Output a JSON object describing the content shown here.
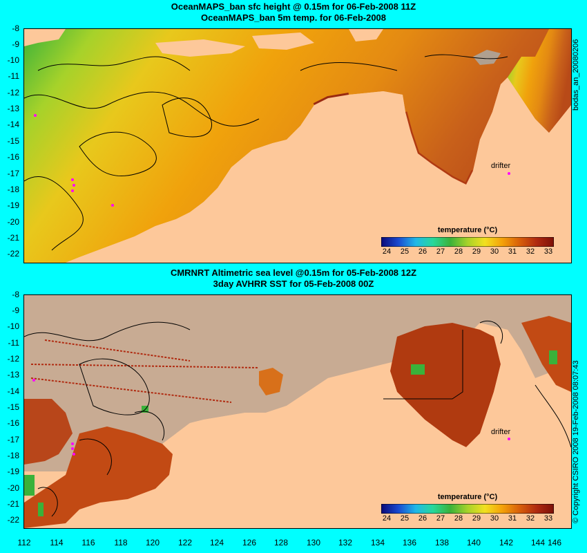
{
  "top_panel": {
    "title_line1": "OceanMAPS_ban sfc height @ 0.15m for 06-Feb-2008 11Z",
    "title_line2": "OceanMAPS_ban 5m temp. for 06-Feb-2008",
    "colorbar_title": "temperature (°C)",
    "drifter_label": "drifter",
    "side_label": "bodas_an_20080206"
  },
  "bottom_panel": {
    "title_line1": "CMRNRT Altimetric sea level  @0.15m  for 05-Feb-2008 12Z",
    "title_line2": "3day AVHRR SST for 05-Feb-2008 00Z",
    "colorbar_title": "temperature (°C)",
    "drifter_label": "drifter",
    "side_label": "© Copyright CSIRO 2008  19-Feb-2008 08:07:43"
  },
  "latitude_labels": [
    "-8",
    "-9",
    "-10",
    "-11",
    "-12",
    "-13",
    "-14",
    "-15",
    "-16",
    "-17",
    "-18",
    "-19",
    "-20",
    "-21",
    "-22"
  ],
  "longitude_labels": [
    "112",
    "114",
    "116",
    "118",
    "120",
    "122",
    "124",
    "126",
    "128",
    "130",
    "132",
    "134",
    "136",
    "138",
    "140",
    "142",
    "144",
    "146"
  ],
  "colorbar_ticks": [
    "24",
    "25",
    "26",
    "27",
    "28",
    "29",
    "30",
    "31",
    "32",
    "33"
  ],
  "colors": {
    "background": "#00ffff",
    "land": "#fdc89a",
    "no_data": "#c8ab93",
    "colorbar": [
      "#0a0a78",
      "#1a4ad0",
      "#1fb8e8",
      "#27d89a",
      "#3ab23a",
      "#a6d22a",
      "#f2e020",
      "#f4a20a",
      "#d8600a",
      "#b02a10",
      "#7c1008"
    ]
  }
}
